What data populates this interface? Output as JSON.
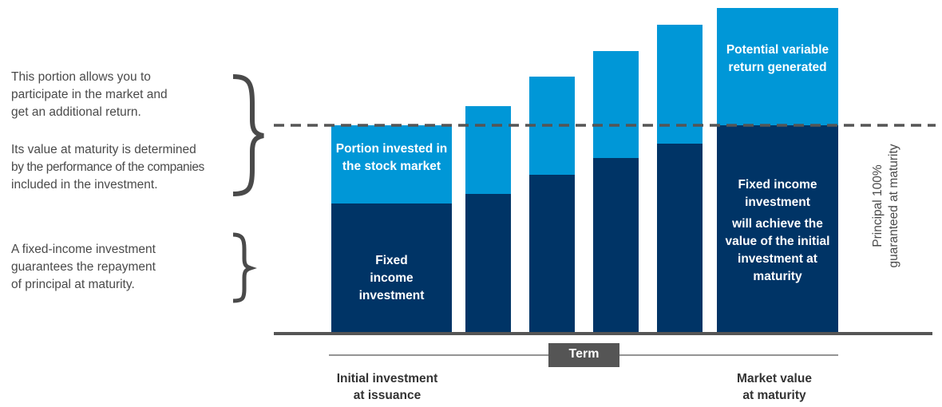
{
  "notes": {
    "market_portion": [
      "This portion allows you to",
      "participate in the market and",
      "get an additional return."
    ],
    "market_value": [
      "Its value at maturity is determined",
      "by the performance of the companies",
      "included in the investment."
    ],
    "fixed_income": [
      "A fixed-income investment",
      "guarantees the repayment",
      "of principal at maturity."
    ]
  },
  "bars": {
    "first_light_label": "Portion invested in the stock market",
    "first_dark_label": "Fixed income investment",
    "last_light_label": "Potential variable return generated",
    "last_dark_label_title": "Fixed income investment",
    "last_dark_label_body": "will achieve the value of the initial investment at maturity"
  },
  "principal_label": [
    "Principal 100%",
    "guaranteed at maturity"
  ],
  "term_label": "Term",
  "start_label": [
    "Initial investment",
    "at issuance"
  ],
  "end_label": [
    "Market value",
    "at maturity"
  ],
  "colors": {
    "fixed_income": "#003466",
    "stock_market": "#0097d7",
    "lines": "#555555"
  }
}
